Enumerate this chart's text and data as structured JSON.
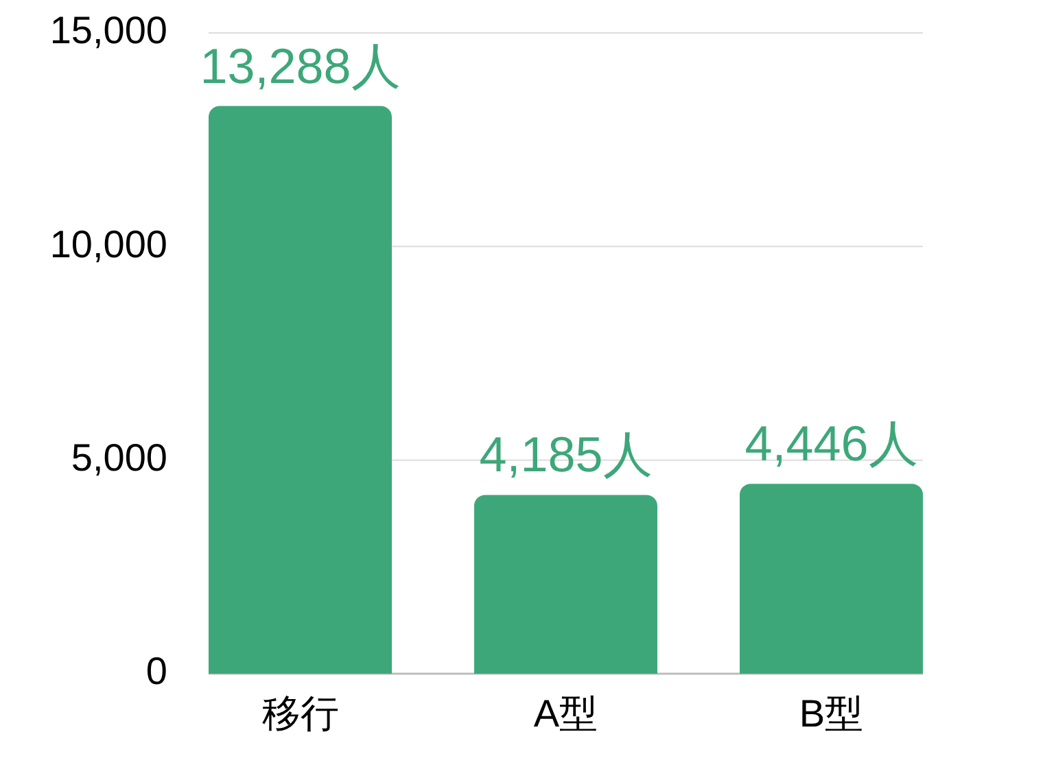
{
  "chart_data": {
    "type": "bar",
    "categories": [
      "移行",
      "A型",
      "B型"
    ],
    "values": [
      13288,
      4185,
      4446
    ],
    "color": "#3ea77a",
    "value_labels": [
      "13,288人",
      "4,185人",
      "4,446人"
    ],
    "ylim": [
      0,
      15000
    ],
    "yticks": [
      0,
      {
        "value": 5000,
        "label": "5,000"
      },
      {
        "value": 10000,
        "label": "10,000"
      },
      {
        "value": 15000,
        "label": "15,000"
      }
    ],
    "grid": "y"
  }
}
